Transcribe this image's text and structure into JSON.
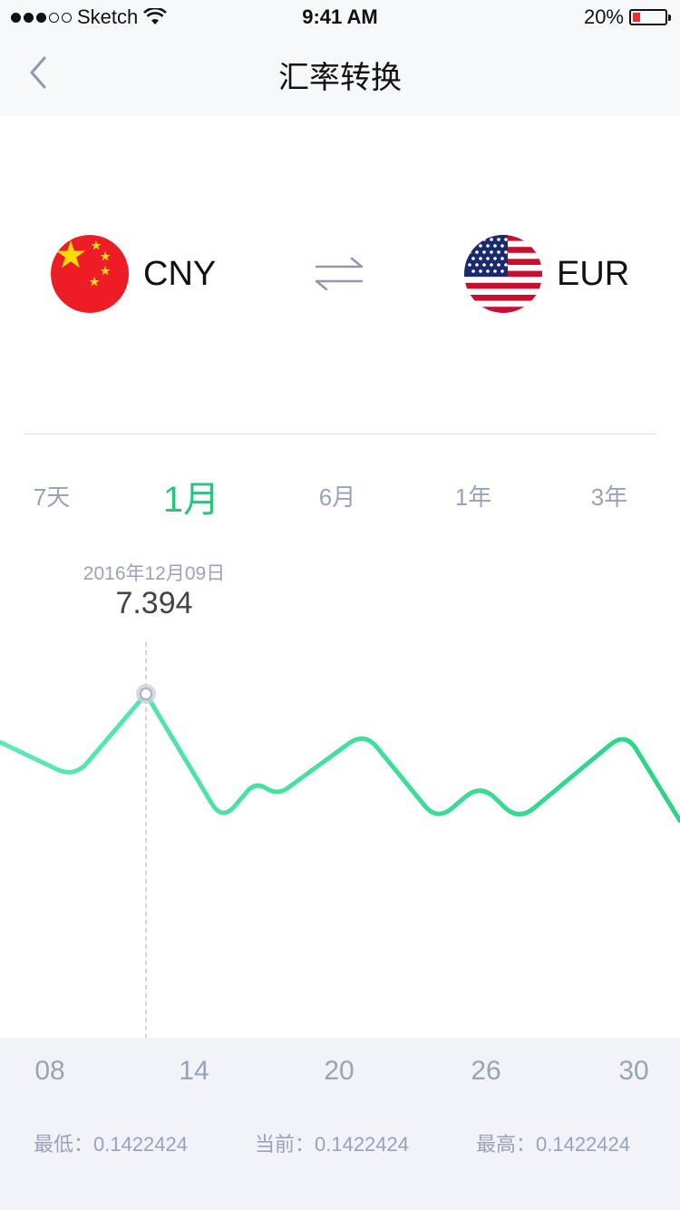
{
  "status_bar": {
    "carrier": "Sketch",
    "time": "9:41 AM",
    "battery": "20%"
  },
  "nav": {
    "title": "汇率转换"
  },
  "converter": {
    "from": {
      "code": "CNY",
      "flag": "china-flag"
    },
    "to": {
      "code": "EUR",
      "flag": "us-flag"
    }
  },
  "periods": [
    "7天",
    "1月",
    "6月",
    "1年",
    "3年"
  ],
  "selected_period": "1月",
  "tooltip": {
    "date": "2016年12月09日",
    "value": "7.394"
  },
  "chart_data": {
    "type": "line",
    "x_tick_labels": [
      "08",
      "14",
      "20",
      "26",
      "30"
    ],
    "series": [
      {
        "values": [
          0.62,
          0.34,
          1.0,
          0.0,
          0.31,
          0.2,
          0.7,
          0.0,
          0.29,
          0.0,
          0.7,
          0.0
        ]
      }
    ],
    "highlight_index": 2,
    "colors": {
      "start": "#5ee8b6",
      "end": "#2cd484"
    }
  },
  "stats": {
    "low": "最低：0.1422424",
    "current": "当前：0.1422424",
    "high": "最高：0.1422424"
  }
}
